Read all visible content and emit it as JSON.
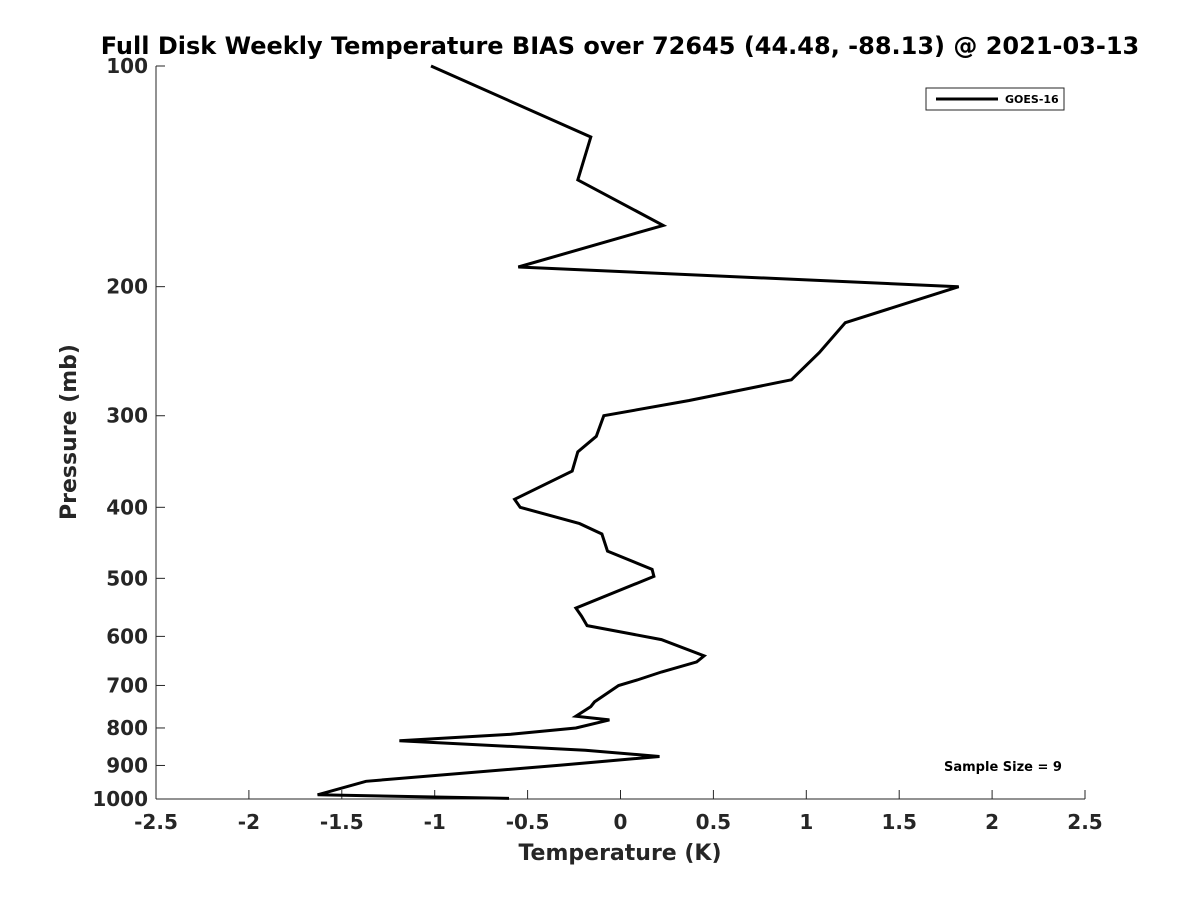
{
  "chart_data": {
    "type": "line",
    "title": "Full Disk Weekly Temperature BIAS over 72645 (44.48, -88.13) @ 2021-03-13",
    "xlabel": "Temperature (K)",
    "ylabel": "Pressure (mb)",
    "xlim": [
      -2.5,
      2.5
    ],
    "ylim": [
      100,
      1000
    ],
    "yscale": "log",
    "yreversed": true,
    "xticks": [
      -2.5,
      -2,
      -1.5,
      -1,
      -0.5,
      0,
      0.5,
      1,
      1.5,
      2,
      2.5
    ],
    "xtick_labels": [
      "-2.5",
      "-2",
      "-1.5",
      "-1",
      "-0.5",
      "0",
      "0.5",
      "1",
      "1.5",
      "2",
      "2.5"
    ],
    "yticks": [
      100,
      200,
      300,
      400,
      500,
      600,
      700,
      800,
      900,
      1000
    ],
    "ytick_labels": [
      "100",
      "200",
      "300",
      "400",
      "500",
      "600",
      "700",
      "800",
      "900",
      "1000"
    ],
    "grid": false,
    "legend_position": "top-right",
    "annotation": "Sample Size = 9",
    "series": [
      {
        "name": "GOES-16",
        "color": "#000000",
        "temperature": [
          -1.02,
          -0.16,
          -0.23,
          0.23,
          -0.55,
          1.82,
          1.21,
          1.07,
          0.92,
          0.37,
          -0.09,
          -0.13,
          -0.23,
          -0.26,
          -0.57,
          -0.54,
          -0.22,
          -0.1,
          -0.07,
          0.17,
          0.18,
          -0.24,
          -0.21,
          -0.18,
          0.22,
          0.45,
          0.41,
          0.22,
          0.09,
          -0.01,
          -0.14,
          -0.16,
          -0.24,
          -0.06,
          -0.24,
          -0.59,
          -1.19,
          -0.19,
          0.21,
          -0.32,
          -1.37,
          -1.63,
          -0.6
        ],
        "pressure": [
          100,
          125,
          143,
          165,
          188,
          200,
          224,
          246,
          268,
          286,
          300,
          320,
          336,
          357,
          390,
          400,
          421,
          435,
          459,
          486,
          497,
          549,
          563,
          580,
          606,
          638,
          650,
          671,
          688,
          700,
          737,
          748,
          771,
          780,
          800,
          816,
          833,
          858,
          875,
          899,
          946,
          987,
          998
        ]
      }
    ]
  }
}
